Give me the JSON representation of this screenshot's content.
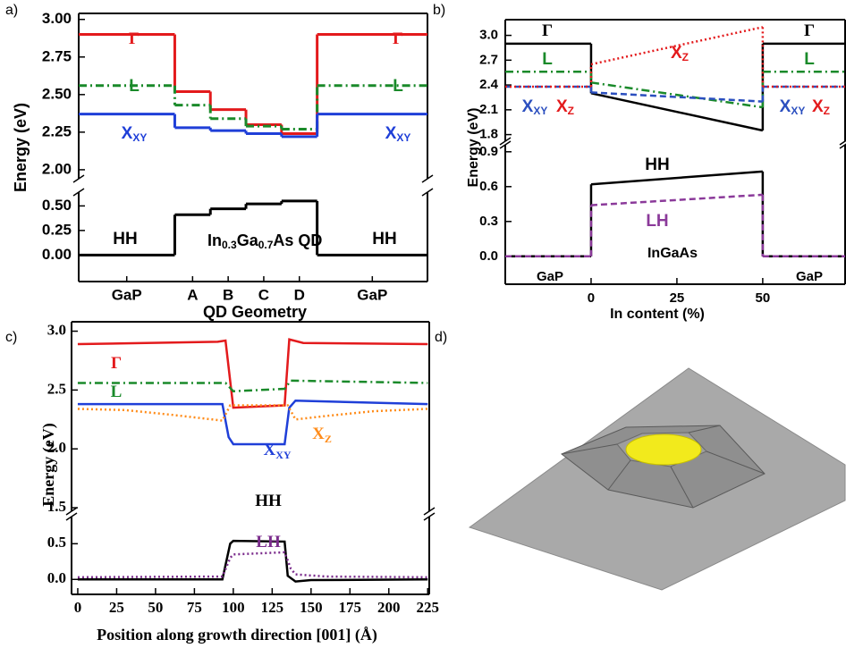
{
  "chart_data": [
    {
      "type": "step",
      "panel": "a)",
      "ylabel": "Energy (eV)",
      "xlabel": "QD Geometry",
      "categories": [
        "GaP",
        "A",
        "B",
        "C",
        "D",
        "GaP"
      ],
      "annotation": [
        "In",
        "0.3",
        "Ga",
        "0.7",
        "As QD"
      ],
      "ylim": [
        1.94,
        3.04
      ],
      "yticks": [
        {
          "value": 2,
          "label": "2.00"
        },
        2.25,
        {
          "value": 2.5,
          "label": "2.50"
        },
        2.75,
        {
          "value": 3,
          "label": "3.00"
        }
      ],
      "ylim_lower": [
        -0.27,
        0.64
      ],
      "yticks_lower": [
        {
          "value": 0,
          "label": "0.00"
        },
        0.25,
        {
          "value": 0.5,
          "label": "0.50"
        }
      ],
      "series": [
        {
          "name": "Γ",
          "color": "#e31a1c",
          "dash": "solid",
          "values": [
            2.9,
            2.52,
            2.4,
            2.3,
            2.24,
            2.9
          ]
        },
        {
          "name": "L",
          "color": "#1a8a2a",
          "dash": "dashdot",
          "values": [
            2.56,
            2.43,
            2.34,
            2.29,
            2.27,
            2.56
          ]
        },
        {
          "name": "X",
          "sub": "XY",
          "color": "#1f3fd8",
          "dash": "solid",
          "values": [
            2.37,
            2.28,
            2.26,
            2.24,
            2.22,
            2.37
          ]
        },
        {
          "name": "HH",
          "color": "#000000",
          "dash": "solid",
          "axis": "lower",
          "values": [
            0,
            0.41,
            0.47,
            0.52,
            0.55,
            0
          ]
        }
      ]
    },
    {
      "type": "line",
      "panel": "b)",
      "ylabel": "Energy (eV)",
      "xlabel": "In content (%)",
      "x": [
        0,
        50
      ],
      "xlim": [
        -25,
        74
      ],
      "xticks": [
        0,
        25,
        50
      ],
      "region_labels": [
        "GaP",
        "GaP"
      ],
      "annotation": "InGaAs",
      "ylim": [
        1.72,
        3.19
      ],
      "yticks": [
        1.8,
        2.1,
        2.4,
        2.7,
        {
          "value": 3,
          "label": "3.0"
        }
      ],
      "ylim_lower": [
        -0.24,
        0.96
      ],
      "yticks_lower": [
        {
          "value": 0,
          "label": "0.0"
        },
        0.3,
        0.6,
        0.9
      ],
      "series": [
        {
          "name": "Γ",
          "color": "#000000",
          "dash": "solid",
          "gap": [
            2.9,
            2.9
          ],
          "values": [
            2.3,
            1.85
          ]
        },
        {
          "name": "L",
          "color": "#1a8a2a",
          "dash": "dashdot",
          "gap": [
            2.56,
            2.56
          ],
          "values": [
            2.43,
            2.13
          ]
        },
        {
          "name": "X",
          "sub": "XY",
          "color": "#2b4fbf",
          "dash": "dashed",
          "gap": [
            2.38,
            2.38
          ],
          "values": [
            2.31,
            2.2
          ]
        },
        {
          "name": "X",
          "sub": "Z",
          "color": "#e31a1c",
          "dash": "dotted",
          "gap": [
            2.38,
            2.38
          ],
          "values": [
            2.65,
            3.1
          ]
        },
        {
          "name": "HH",
          "color": "#000000",
          "dash": "solid",
          "axis": "lower",
          "gap": [
            0,
            0
          ],
          "values": [
            0.62,
            0.73
          ]
        },
        {
          "name": "LH",
          "color": "#8b3a9a",
          "dash": "dashed",
          "axis": "lower",
          "gap": [
            0,
            0
          ],
          "values": [
            0.44,
            0.53
          ]
        }
      ]
    },
    {
      "type": "line",
      "panel": "c)",
      "ylabel": "Energy (eV)",
      "xlabel": "Position along growth direction [001] (Å)",
      "xlim": [
        -4,
        226
      ],
      "xticks": [
        0,
        25,
        50,
        75,
        100,
        125,
        150,
        175,
        200,
        225
      ],
      "ylim": [
        1.47,
        3.08
      ],
      "yticks": [
        1.5,
        {
          "value": 2,
          "label": "2.0"
        },
        2.5,
        {
          "value": 3,
          "label": "3.0"
        }
      ],
      "ylim_lower": [
        -0.21,
        0.88
      ],
      "yticks_lower": [
        {
          "value": 0,
          "label": "0.0"
        },
        0.5
      ],
      "series": [
        {
          "name": "Γ",
          "color": "#e31a1c",
          "dash": "solid",
          "x": [
            0,
            90,
            95,
            100,
            133,
            136,
            145,
            225
          ],
          "values": [
            2.89,
            2.91,
            2.92,
            2.35,
            2.37,
            2.93,
            2.9,
            2.89
          ]
        },
        {
          "name": "L",
          "color": "#1a8a2a",
          "dash": "dashdot",
          "x": [
            0,
            95,
            100,
            133,
            137,
            225
          ],
          "values": [
            2.56,
            2.56,
            2.49,
            2.51,
            2.58,
            2.56
          ]
        },
        {
          "name": "X",
          "sub": "XY",
          "color": "#1f3fd8",
          "dash": "solid",
          "x": [
            0,
            93,
            97,
            100,
            133,
            136,
            140,
            225
          ],
          "values": [
            2.38,
            2.38,
            2.1,
            2.04,
            2.04,
            2.35,
            2.41,
            2.38
          ]
        },
        {
          "name": "X",
          "sub": "Z",
          "color": "#ff8c1a",
          "dash": "dotted",
          "x": [
            0,
            30,
            60,
            80,
            93,
            98,
            135,
            140,
            160,
            190,
            225
          ],
          "values": [
            2.34,
            2.33,
            2.29,
            2.26,
            2.24,
            2.37,
            2.37,
            2.25,
            2.28,
            2.32,
            2.34
          ]
        },
        {
          "name": "HH",
          "color": "#000000",
          "dash": "solid",
          "axis": "lower",
          "x": [
            0,
            93,
            98,
            100,
            133,
            135,
            140,
            150,
            225
          ],
          "values": [
            0,
            0,
            0.5,
            0.54,
            0.53,
            0.05,
            -0.03,
            -0.01,
            0
          ]
        },
        {
          "name": "LH",
          "color": "#7b2c8c",
          "dash": "dotted",
          "axis": "lower",
          "x": [
            0,
            93,
            98,
            100,
            133,
            137,
            140,
            160,
            225
          ],
          "values": [
            0.03,
            0.04,
            0.3,
            0.35,
            0.38,
            0.15,
            0.07,
            0.04,
            0.03
          ]
        }
      ]
    }
  ],
  "panel_d": {
    "label": "d)"
  }
}
